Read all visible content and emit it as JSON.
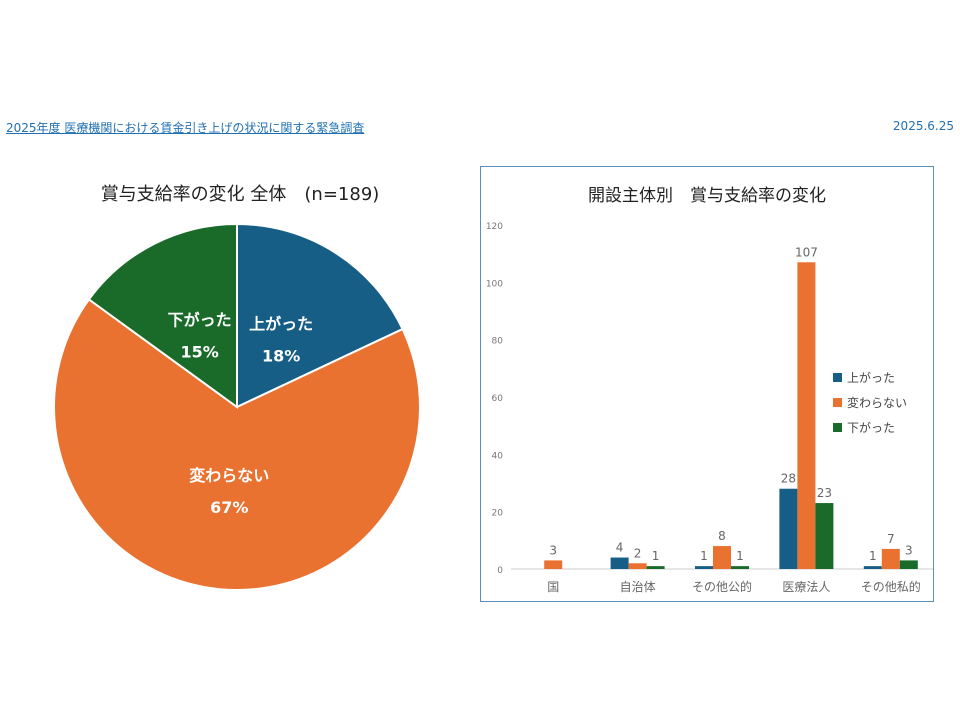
{
  "header": {
    "title_link": "2025年度 医療機関における賃金引き上げの状況に関する緊急調査",
    "date": "2025.6.25"
  },
  "colors": {
    "up": "#175e86",
    "same": "#e97231",
    "down": "#1a6b2a",
    "panel_border": "#5b8fb9",
    "link": "#1f6fb2"
  },
  "chart_data": [
    {
      "type": "pie",
      "title": "賞与支給率の変化 全体　(n=189)",
      "slices": [
        {
          "label": "上がった",
          "value": 18,
          "display": "18%",
          "color": "#175e86"
        },
        {
          "label": "変わらない",
          "value": 67,
          "display": "67%",
          "color": "#e97231"
        },
        {
          "label": "下がった",
          "value": 15,
          "display": "15%",
          "color": "#1a6b2a"
        }
      ]
    },
    {
      "type": "bar",
      "title": "開設主体別　賞与支給率の変化",
      "categories": [
        "国",
        "自治体",
        "その他公的",
        "医療法人",
        "その他私的"
      ],
      "series": [
        {
          "name": "上がった",
          "color": "#175e86",
          "values": [
            0,
            4,
            1,
            28,
            1
          ]
        },
        {
          "name": "変わらない",
          "color": "#e97231",
          "values": [
            3,
            2,
            8,
            107,
            7
          ]
        },
        {
          "name": "下がった",
          "color": "#1a6b2a",
          "values": [
            0,
            1,
            1,
            23,
            3
          ]
        }
      ],
      "ylim": [
        0,
        120
      ],
      "yticks": [
        0,
        20,
        40,
        60,
        80,
        100,
        120
      ],
      "legend": "right",
      "grid": false
    }
  ]
}
